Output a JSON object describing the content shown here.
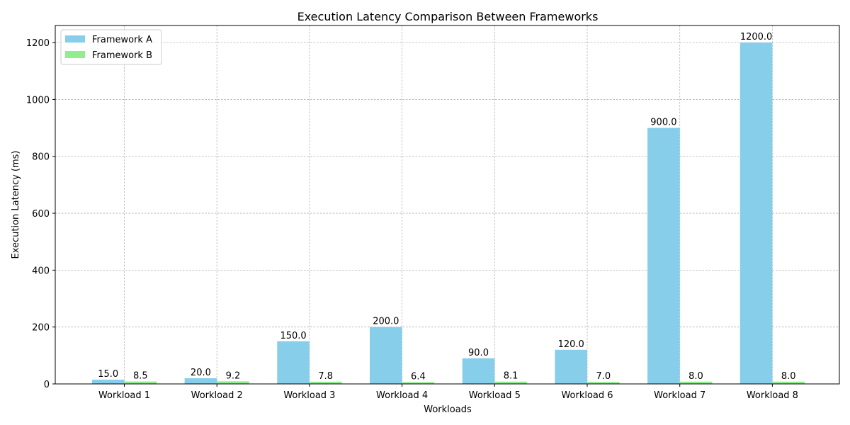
{
  "chart_data": {
    "type": "bar",
    "title": "Execution Latency Comparison Between Frameworks",
    "xlabel": "Workloads",
    "ylabel": "Execution Latency (ms)",
    "categories": [
      "Workload 1",
      "Workload 2",
      "Workload 3",
      "Workload 4",
      "Workload 5",
      "Workload 6",
      "Workload 7",
      "Workload 8"
    ],
    "series": [
      {
        "name": "Framework A",
        "color": "#87ceeb",
        "values": [
          15.0,
          20.0,
          150.0,
          200.0,
          90.0,
          120.0,
          900.0,
          1200.0
        ],
        "labels": [
          "15.0",
          "20.0",
          "150.0",
          "200.0",
          "90.0",
          "120.0",
          "900.0",
          "1200.0"
        ]
      },
      {
        "name": "Framework B",
        "color": "#90ee90",
        "values": [
          8.5,
          9.2,
          7.8,
          6.4,
          8.1,
          7.0,
          8.0,
          8.0
        ],
        "labels": [
          "8.5",
          "9.2",
          "7.8",
          "6.4",
          "8.1",
          "7.0",
          "8.0",
          "8.0"
        ]
      }
    ],
    "ylim": [
      0,
      1260
    ],
    "yticks": [
      0,
      200,
      400,
      600,
      800,
      1000,
      1200
    ],
    "grid": true,
    "legend": "upper-left"
  }
}
